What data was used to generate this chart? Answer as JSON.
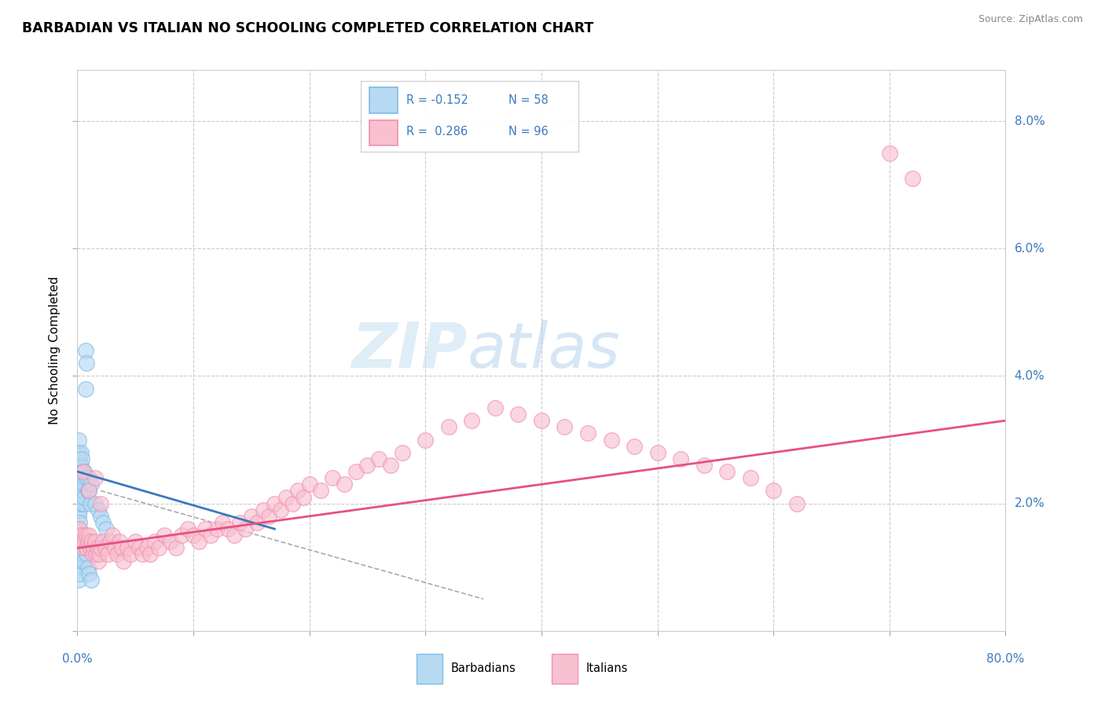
{
  "title": "BARBADIAN VS ITALIAN NO SCHOOLING COMPLETED CORRELATION CHART",
  "source": "Source: ZipAtlas.com",
  "ylabel": "No Schooling Completed",
  "ytick_vals": [
    0.0,
    0.02,
    0.04,
    0.06,
    0.08
  ],
  "ytick_labels": [
    "",
    "2.0%",
    "4.0%",
    "6.0%",
    "8.0%"
  ],
  "xrange": [
    0.0,
    0.8
  ],
  "yrange": [
    0.0,
    0.088
  ],
  "blue_color": "#7bbce8",
  "blue_fill": "#b8d9f2",
  "pink_color": "#f090b0",
  "pink_fill": "#f8c0d0",
  "trend_blue": "#3a7abf",
  "trend_pink": "#e85080",
  "dashed_color": "#aaaaaa",
  "text_blue": "#3a7abf",
  "watermark_zip": "ZIP",
  "watermark_atlas": "atlas",
  "barbadian_x": [
    0.001,
    0.001,
    0.001,
    0.001,
    0.001,
    0.001,
    0.001,
    0.001,
    0.002,
    0.002,
    0.002,
    0.002,
    0.002,
    0.002,
    0.003,
    0.003,
    0.003,
    0.003,
    0.003,
    0.004,
    0.004,
    0.004,
    0.004,
    0.005,
    0.005,
    0.005,
    0.006,
    0.006,
    0.006,
    0.007,
    0.007,
    0.008,
    0.008,
    0.009,
    0.01,
    0.01,
    0.011,
    0.012,
    0.015,
    0.018,
    0.02,
    0.022,
    0.025,
    0.001,
    0.001,
    0.002,
    0.002,
    0.003,
    0.003,
    0.004,
    0.005,
    0.006,
    0.007,
    0.008,
    0.009,
    0.01,
    0.012
  ],
  "barbadian_y": [
    0.024,
    0.026,
    0.022,
    0.028,
    0.02,
    0.018,
    0.03,
    0.016,
    0.025,
    0.027,
    0.023,
    0.021,
    0.019,
    0.017,
    0.024,
    0.026,
    0.022,
    0.02,
    0.028,
    0.025,
    0.023,
    0.021,
    0.027,
    0.024,
    0.022,
    0.02,
    0.025,
    0.023,
    0.021,
    0.044,
    0.038,
    0.042,
    0.024,
    0.022,
    0.024,
    0.022,
    0.02,
    0.023,
    0.02,
    0.019,
    0.018,
    0.017,
    0.016,
    0.01,
    0.008,
    0.012,
    0.009,
    0.014,
    0.011,
    0.013,
    0.012,
    0.011,
    0.013,
    0.012,
    0.01,
    0.009,
    0.008
  ],
  "italian_x": [
    0.001,
    0.002,
    0.003,
    0.004,
    0.005,
    0.006,
    0.007,
    0.008,
    0.009,
    0.01,
    0.011,
    0.012,
    0.013,
    0.014,
    0.015,
    0.016,
    0.017,
    0.018,
    0.019,
    0.02,
    0.022,
    0.024,
    0.026,
    0.028,
    0.03,
    0.032,
    0.034,
    0.036,
    0.038,
    0.04,
    0.043,
    0.046,
    0.05,
    0.053,
    0.056,
    0.06,
    0.063,
    0.067,
    0.07,
    0.075,
    0.08,
    0.085,
    0.09,
    0.095,
    0.1,
    0.105,
    0.11,
    0.115,
    0.12,
    0.125,
    0.13,
    0.135,
    0.14,
    0.145,
    0.15,
    0.155,
    0.16,
    0.165,
    0.17,
    0.175,
    0.18,
    0.185,
    0.19,
    0.195,
    0.2,
    0.21,
    0.22,
    0.23,
    0.24,
    0.25,
    0.26,
    0.27,
    0.28,
    0.3,
    0.32,
    0.34,
    0.36,
    0.38,
    0.4,
    0.42,
    0.44,
    0.46,
    0.48,
    0.5,
    0.52,
    0.54,
    0.56,
    0.58,
    0.6,
    0.62,
    0.7,
    0.72,
    0.005,
    0.01,
    0.015,
    0.02
  ],
  "italian_y": [
    0.015,
    0.016,
    0.014,
    0.015,
    0.013,
    0.014,
    0.015,
    0.013,
    0.014,
    0.015,
    0.013,
    0.014,
    0.012,
    0.013,
    0.014,
    0.012,
    0.013,
    0.011,
    0.012,
    0.013,
    0.014,
    0.013,
    0.012,
    0.014,
    0.015,
    0.013,
    0.012,
    0.014,
    0.013,
    0.011,
    0.013,
    0.012,
    0.014,
    0.013,
    0.012,
    0.013,
    0.012,
    0.014,
    0.013,
    0.015,
    0.014,
    0.013,
    0.015,
    0.016,
    0.015,
    0.014,
    0.016,
    0.015,
    0.016,
    0.017,
    0.016,
    0.015,
    0.017,
    0.016,
    0.018,
    0.017,
    0.019,
    0.018,
    0.02,
    0.019,
    0.021,
    0.02,
    0.022,
    0.021,
    0.023,
    0.022,
    0.024,
    0.023,
    0.025,
    0.026,
    0.027,
    0.026,
    0.028,
    0.03,
    0.032,
    0.033,
    0.035,
    0.034,
    0.033,
    0.032,
    0.031,
    0.03,
    0.029,
    0.028,
    0.027,
    0.026,
    0.025,
    0.024,
    0.022,
    0.02,
    0.075,
    0.071,
    0.025,
    0.022,
    0.024,
    0.02
  ],
  "blue_trend_x": [
    0.0,
    0.17
  ],
  "blue_trend_y": [
    0.025,
    0.016
  ],
  "pink_trend_x": [
    0.0,
    0.8
  ],
  "pink_trend_y": [
    0.013,
    0.033
  ],
  "dash_trend_x": [
    0.02,
    0.35
  ],
  "dash_trend_y": [
    0.022,
    0.005
  ]
}
